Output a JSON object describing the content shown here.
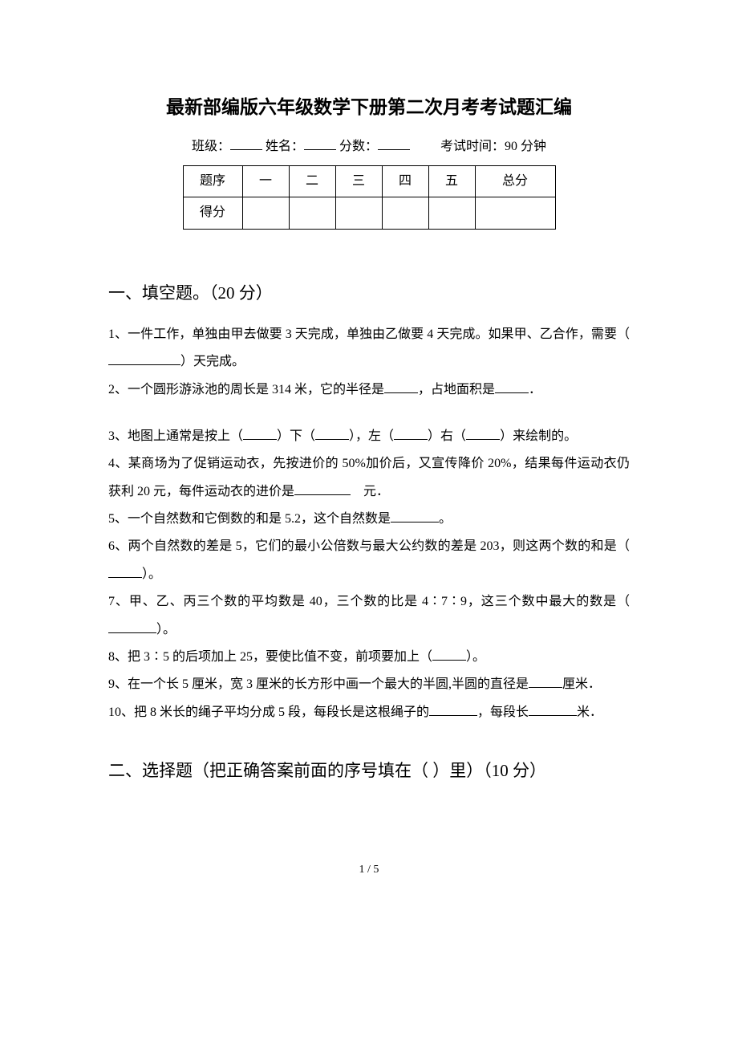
{
  "doc": {
    "title": "最新部编版六年级数学下册第二次月考考试题汇编",
    "meta": {
      "class_label": "班级：",
      "name_label": "姓名：",
      "score_label": "分数：",
      "exam_time_label": "考试时间：90 分钟"
    },
    "score_table": {
      "row1": [
        "题序",
        "一",
        "二",
        "三",
        "四",
        "五",
        "总分"
      ],
      "row2_label": "得分"
    },
    "section1": {
      "heading": "一、填空题。（20 分）",
      "q1a": "1、一件工作，单独由甲去做要 3 天完成，单独由乙做要 4 天完成。如果甲、乙合作，需要（",
      "q1b": "）天完成。",
      "q2a": "2、一个圆形游泳池的周长是 314 米，它的半径是",
      "q2b": "，占地面积是",
      "q2c": "．",
      "q3a": "3、地图上通常是按上（",
      "q3b": "）下（",
      "q3c": "），左（",
      "q3d": "）右（",
      "q3e": "）来绘制的。",
      "q4a": "4、某商场为了促销运动衣，先按进价的 50%加价后，又宣传降价 20%，结果每件运动衣仍获利 20 元，每件运动衣的进价是",
      "q4b": "　元．",
      "q5a": "5、一个自然数和它倒数的和是 5.2，这个自然数是",
      "q5b": "。",
      "q6a": "6、两个自然数的差是 5，它们的最小公倍数与最大公约数的差是 203，则这两个数的和是（",
      "q6b": "）。",
      "q7a": "7、甲、乙、丙三个数的平均数是 40，三个数的比是 4∶7∶9，这三个数中最大的数是（",
      "q7b": "）。",
      "q8a": "8、把 3∶5 的后项加上 25，要使比值不变，前项要加上（",
      "q8b": "）。",
      "q9a": "9、在一个长 5 厘米，宽 3 厘米的长方形中画一个最大的半圆,半圆的直径是",
      "q9b": "厘米．",
      "q10a": "10、把 8 米长的绳子平均分成 5 段，每段长是这根绳子的",
      "q10b": "，每段长",
      "q10c": "米．"
    },
    "section2": {
      "heading": "二、选择题（把正确答案前面的序号填在（ ）里）（10 分）"
    },
    "page_number": "1 / 5"
  }
}
